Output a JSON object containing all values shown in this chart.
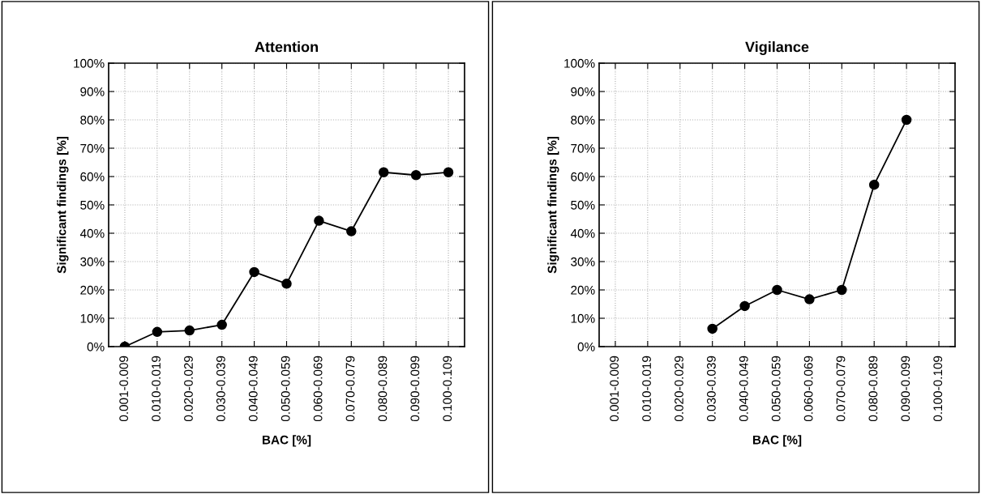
{
  "chart_data": [
    {
      "type": "line",
      "title": "Attention",
      "xlabel": "BAC [%]",
      "ylabel": "Significant findings [%]",
      "categories": [
        "0.001-0.009",
        "0.010-0.019",
        "0.020-0.029",
        "0.030-0.039",
        "0.040-0.049",
        "0.050-0.059",
        "0.060-0.069",
        "0.070-0.079",
        "0.080-0.089",
        "0.090-0.099",
        "0.100-0.109"
      ],
      "series": [
        {
          "color": "#000000",
          "values": [
            0,
            5.2,
            5.7,
            7.7,
            26.3,
            22.2,
            44.4,
            40.7,
            61.5,
            60.5,
            61.5
          ]
        }
      ],
      "ylim": [
        0,
        100
      ],
      "yticks": [
        {
          "value": 0,
          "label": "0%"
        },
        {
          "value": 10,
          "label": "10%"
        },
        {
          "value": 20,
          "label": "20%"
        },
        {
          "value": 30,
          "label": "30%"
        },
        {
          "value": 40,
          "label": "40%"
        },
        {
          "value": 50,
          "label": "50%"
        },
        {
          "value": 60,
          "label": "60%"
        },
        {
          "value": 70,
          "label": "70%"
        },
        {
          "value": 80,
          "label": "80%"
        },
        {
          "value": 90,
          "label": "90%"
        },
        {
          "value": 100,
          "label": "100%"
        }
      ],
      "grid": true,
      "marker": "circle",
      "line_style": "solid"
    },
    {
      "type": "line",
      "title": "Vigilance",
      "xlabel": "BAC [%]",
      "ylabel": "Significant findings [%]",
      "categories": [
        "0.001-0.009",
        "0.010-0.019",
        "0.020-0.029",
        "0.030-0.039",
        "0.040-0.049",
        "0.050-0.059",
        "0.060-0.069",
        "0.070-0.079",
        "0.080-0.089",
        "0.090-0.099",
        "0.100-0.109"
      ],
      "series": [
        {
          "color": "#000000",
          "values": [
            null,
            null,
            null,
            6.3,
            14.3,
            20,
            16.7,
            20,
            57.1,
            80,
            null
          ]
        }
      ],
      "ylim": [
        0,
        100
      ],
      "yticks": [
        {
          "value": 0,
          "label": "0%"
        },
        {
          "value": 10,
          "label": "10%"
        },
        {
          "value": 20,
          "label": "20%"
        },
        {
          "value": 30,
          "label": "30%"
        },
        {
          "value": 40,
          "label": "40%"
        },
        {
          "value": 50,
          "label": "50%"
        },
        {
          "value": 60,
          "label": "60%"
        },
        {
          "value": 70,
          "label": "70%"
        },
        {
          "value": 80,
          "label": "80%"
        },
        {
          "value": 90,
          "label": "90%"
        },
        {
          "value": 100,
          "label": "100%"
        }
      ],
      "grid": true,
      "marker": "circle",
      "line_style": "solid"
    }
  ]
}
